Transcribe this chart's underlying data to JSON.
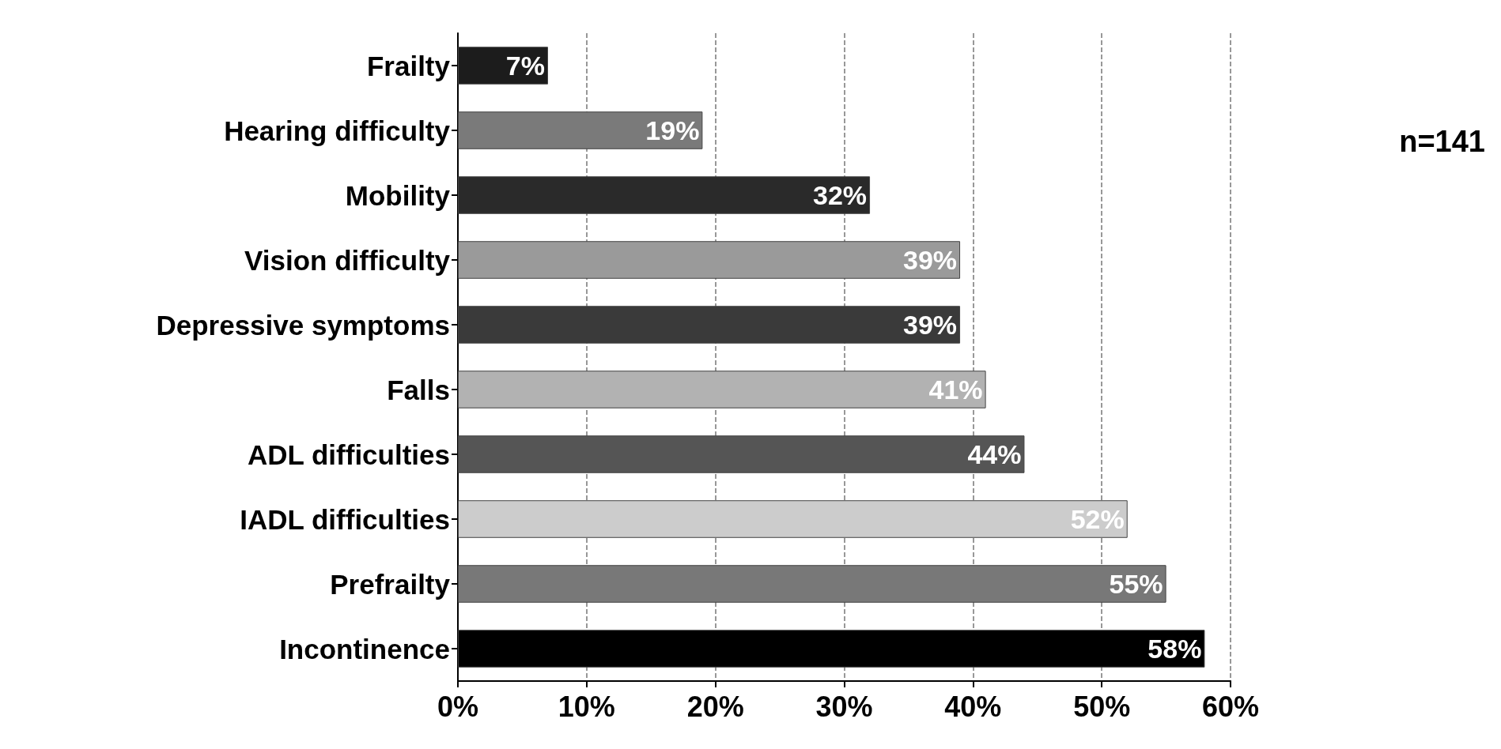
{
  "chart_data": {
    "type": "bar",
    "orientation": "horizontal",
    "categories": [
      "Frailty",
      "Hearing difficulty",
      "Mobility",
      "Vision difficulty",
      "Depressive symptoms",
      "Falls",
      "ADL difficulties",
      "IADL difficulties",
      "Prefrailty",
      "Incontinence"
    ],
    "values": [
      7,
      19,
      32,
      39,
      39,
      41,
      44,
      52,
      55,
      58
    ],
    "value_labels": [
      "7%",
      "19%",
      "32%",
      "39%",
      "39%",
      "41%",
      "44%",
      "52%",
      "55%",
      "58%"
    ],
    "colors": [
      "#1c1c1c",
      "#7a7a7a",
      "#2a2a2a",
      "#9a9a9a",
      "#3a3a3a",
      "#b2b2b2",
      "#555555",
      "#cccccc",
      "#787878",
      "#000000"
    ],
    "xlim": [
      0,
      60
    ],
    "xticks": [
      {
        "value": 0,
        "label": "0%"
      },
      {
        "value": 10,
        "label": "10%"
      },
      {
        "value": 20,
        "label": "20%"
      },
      {
        "value": 30,
        "label": "30%"
      },
      {
        "value": 40,
        "label": "40%"
      },
      {
        "value": 50,
        "label": "50%"
      },
      {
        "value": 60,
        "label": "60%"
      }
    ],
    "grid": "x",
    "annotations": [
      "n=141"
    ]
  }
}
